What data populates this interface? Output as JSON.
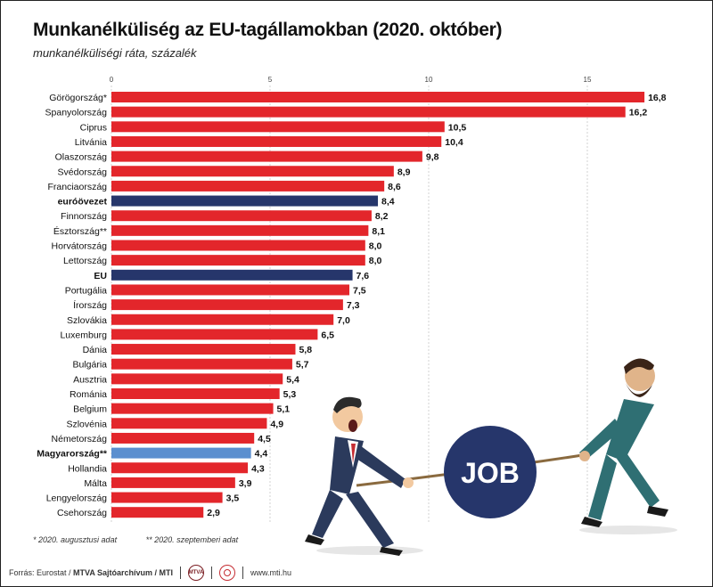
{
  "title": "Munkanélküliség az EU-tagállamokban (2020. október)",
  "subtitle": "munkanélküliségi ráta, százalék",
  "footnotes": [
    "* 2020. augusztusi adat",
    "** 2020. szeptemberi adat"
  ],
  "source": {
    "prefix": "Forrás: Eurostat / ",
    "bold": "MTVA Sajtóarchívum / MTI",
    "logo_text": "MTVA",
    "url": "www.mti.hu"
  },
  "illustration": {
    "sign_text": "JOB"
  },
  "colors": {
    "country": "#e3262b",
    "eurozone": "#26366b",
    "eu": "#26366b",
    "hungary": "#5b8fcf",
    "grid": "#c8c8c8"
  },
  "chart_data": {
    "type": "bar",
    "orientation": "horizontal",
    "xlim": [
      0,
      17
    ],
    "ticks": [
      0,
      5,
      10,
      15
    ],
    "grid": true,
    "categories": [
      "Görögország*",
      "Spanyolország",
      "Ciprus",
      "Litvánia",
      "Olaszország",
      "Svédország",
      "Franciaország",
      "euróövezet",
      "Finnország",
      "Észtország**",
      "Horvátország",
      "Lettország",
      "EU",
      "Portugália",
      "Írország",
      "Szlovákia",
      "Luxemburg",
      "Dánia",
      "Bulgária",
      "Ausztria",
      "Románia",
      "Belgium",
      "Szlovénia",
      "Németország",
      "Magyarország**",
      "Hollandia",
      "Málta",
      "Lengyelország",
      "Csehország"
    ],
    "values": [
      16.8,
      16.2,
      10.5,
      10.4,
      9.8,
      8.9,
      8.6,
      8.4,
      8.2,
      8.1,
      8.0,
      8.0,
      7.6,
      7.5,
      7.3,
      7.0,
      6.5,
      5.8,
      5.7,
      5.4,
      5.3,
      5.1,
      4.9,
      4.5,
      4.4,
      4.3,
      3.9,
      3.5,
      2.9
    ],
    "value_labels": [
      "16,8",
      "16,2",
      "10,5",
      "10,4",
      "9,8",
      "8,9",
      "8,6",
      "8,4",
      "8,2",
      "8,1",
      "8,0",
      "8,0",
      "7,6",
      "7,5",
      "7,3",
      "7,0",
      "6,5",
      "5,8",
      "5,7",
      "5,4",
      "5,3",
      "5,1",
      "4,9",
      "4,5",
      "4,4",
      "4,3",
      "3,9",
      "3,5",
      "2,9"
    ],
    "highlight": {
      "euróövezet": "eurozone",
      "EU": "eu",
      "Magyarország**": "hungary"
    },
    "bold_categories": [
      "euróövezet",
      "EU",
      "Magyarország**"
    ]
  }
}
